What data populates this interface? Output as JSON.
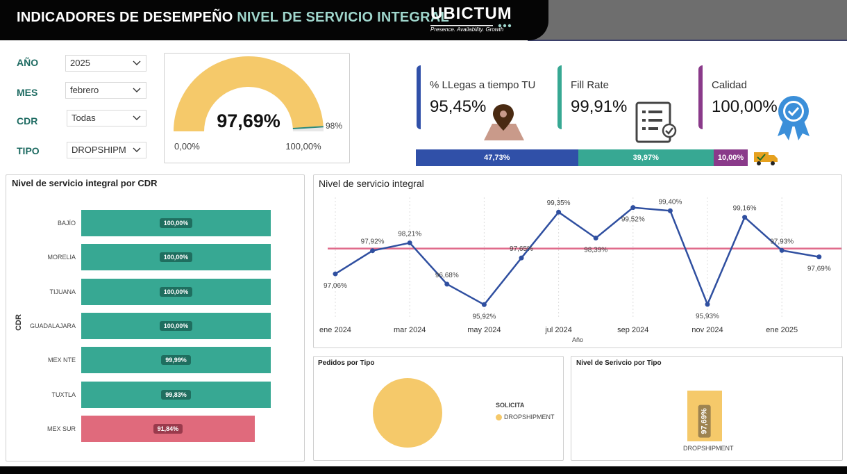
{
  "header": {
    "title_main": "INDICADORES DE DESEMPEÑO ",
    "title_highlight": "NIVEL DE SERVICIO INTEGRAL",
    "logo_name": "UBICTUM",
    "logo_tagline": "Presence. Availability. Growth"
  },
  "filters": [
    {
      "label": "AÑO",
      "value": "2025"
    },
    {
      "label": "MES",
      "value": "febrero"
    },
    {
      "label": "CDR",
      "value": "Todas"
    },
    {
      "label": "TIPO",
      "value": "DROPSHIPME..."
    }
  ],
  "gauge": {
    "value_text": "97,69%",
    "value": 97.69,
    "min_label": "0,00%",
    "max_label": "100,00%",
    "target_label": "98%",
    "target": 98,
    "fill_color": "#f5c96a"
  },
  "kpis": [
    {
      "label": "% LLegas a tiempo TU",
      "value": "95,45%",
      "color": "#3050a8",
      "icon": "location-pin-icon"
    },
    {
      "label": "Fill Rate",
      "value": "99,91%",
      "color": "#37a893",
      "icon": "checklist-icon"
    },
    {
      "label": "Calidad",
      "value": "100,00%",
      "color": "#8a3a8a",
      "icon": "quality-badge-icon"
    }
  ],
  "composition_bar": [
    {
      "label": "47,73%",
      "value": 47.73,
      "color": "#3050a8"
    },
    {
      "label": "39,97%",
      "value": 39.97,
      "color": "#37a893"
    },
    {
      "label": "10,00%",
      "value": 10.0,
      "color": "#8a3a8a"
    }
  ],
  "cdr_chart": {
    "title": "Nivel de servicio integral por CDR",
    "axis_label": "CDR",
    "bars": [
      {
        "name": "BAJÍO",
        "label": "100,00%",
        "value": 100.0
      },
      {
        "name": "MORELIA",
        "label": "100,00%",
        "value": 100.0
      },
      {
        "name": "TIJUANA",
        "label": "100,00%",
        "value": 100.0
      },
      {
        "name": "GUADALAJARA",
        "label": "100,00%",
        "value": 100.0
      },
      {
        "name": "MEX NTE",
        "label": "99,99%",
        "value": 99.99
      },
      {
        "name": "TUXTLA",
        "label": "99,83%",
        "value": 99.83
      },
      {
        "name": "MEX SUR",
        "label": "91,84%",
        "value": 91.84
      }
    ],
    "ok_color": "#37a893",
    "bad_color": "#e06a7c"
  },
  "chart_data": [
    {
      "type": "line",
      "title": "Nivel de servicio integral",
      "xlabel": "Año",
      "x": [
        "2024-01",
        "2024-02",
        "2024-03",
        "2024-04",
        "2024-05",
        "2024-06",
        "2024-07",
        "2024-08",
        "2024-09",
        "2024-10",
        "2024-11",
        "2024-12",
        "2025-01",
        "2025-02"
      ],
      "values": [
        97.06,
        97.92,
        98.21,
        96.68,
        95.92,
        97.65,
        99.35,
        98.39,
        99.52,
        99.4,
        95.93,
        99.16,
        97.93,
        97.69
      ],
      "point_labels": [
        "97,06%",
        "97,92%",
        "98,21%",
        "96,68%",
        "95,92%",
        "97,65%",
        "99,35%",
        "98,39%",
        "99,52%",
        "99,40%",
        "95,93%",
        "99,16%",
        "97,93%",
        "97,69%"
      ],
      "x_tick_labels": [
        "ene 2024",
        "mar 2024",
        "may 2024",
        "jul 2024",
        "sep 2024",
        "nov 2024",
        "ene 2025"
      ],
      "target": 98,
      "line_color": "#2f4fa0",
      "target_color": "#e06a8a"
    },
    {
      "type": "pie",
      "title": "Pedidos por Tipo",
      "legend_title": "SOLICITA",
      "categories": [
        "DROPSHIPMENT"
      ],
      "values": [
        1
      ],
      "colors": [
        "#f5c96a"
      ]
    },
    {
      "type": "bar",
      "title": "Nivel de Serivcio por Tipo",
      "categories": [
        "DROPSHIPMENT"
      ],
      "values": [
        97.69
      ],
      "value_labels": [
        "97,69%"
      ],
      "colors": [
        "#f5c96a"
      ]
    }
  ]
}
